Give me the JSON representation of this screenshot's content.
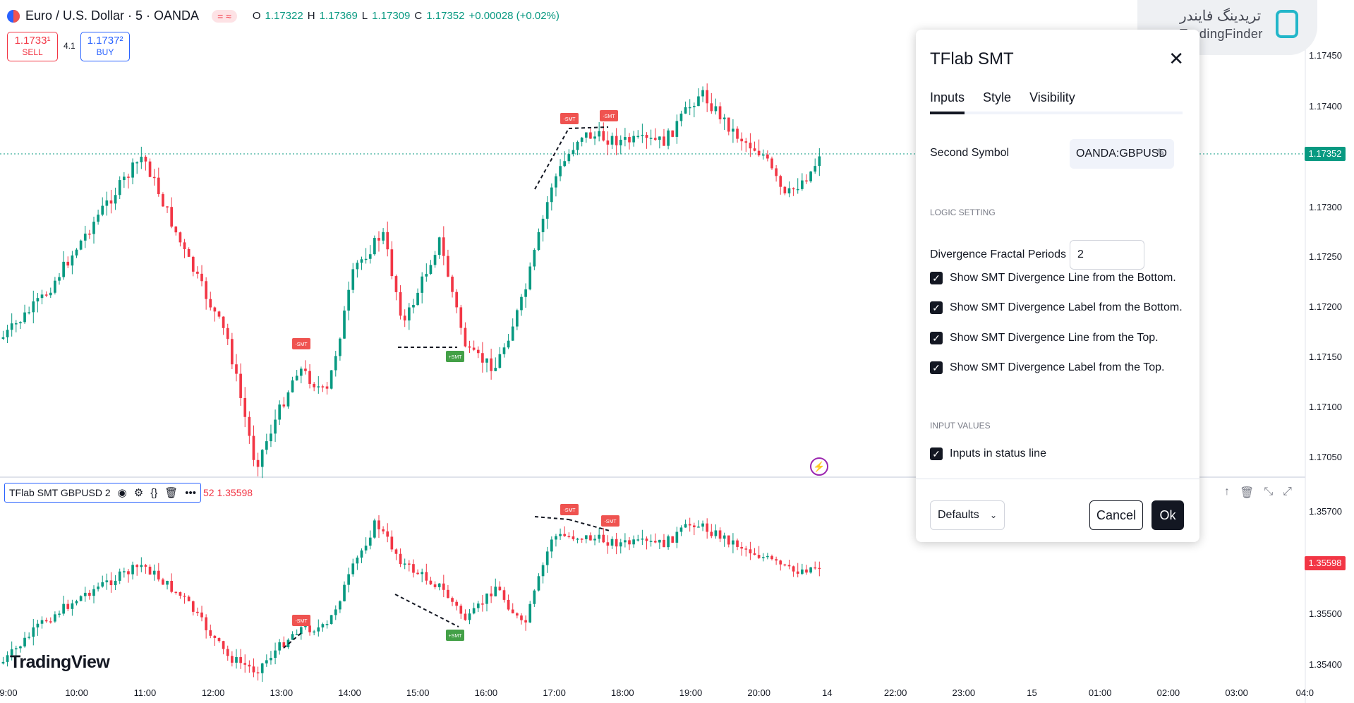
{
  "header": {
    "symbol_title": "Euro / U.S. Dollar · 5 · OANDA",
    "pill": "= ≈",
    "ohlc": [
      {
        "k": "O",
        "v": "1.17322"
      },
      {
        "k": "H",
        "v": "1.17369"
      },
      {
        "k": "L",
        "v": "1.17309"
      },
      {
        "k": "C",
        "v": "1.17352"
      },
      {
        "k": "",
        "v": "+0.00028 (+0.02%)"
      }
    ]
  },
  "trade": {
    "sell_price": "1.1733¹",
    "sell_label": "SELL",
    "spread": "4.1",
    "buy_price": "1.1737²",
    "buy_label": "BUY"
  },
  "main_price_axis": [
    "1.17450",
    "1.17400",
    "1.17352",
    "1.17300",
    "1.17250",
    "1.17200",
    "1.17150",
    "1.17100",
    "1.17050"
  ],
  "main_last_price": "1.17352",
  "indicator": {
    "legend_name": "TFlab SMT GBPUSD 2",
    "value_text": "52  1.35598",
    "price_axis": [
      "1.35700",
      "1.35598",
      "1.35500",
      "1.35400"
    ],
    "last_price": "1.35598"
  },
  "time_axis": [
    "9:00",
    "10:00",
    "11:00",
    "12:00",
    "13:00",
    "14:00",
    "15:00",
    "16:00",
    "17:00",
    "18:00",
    "19:00",
    "20:00",
    "14",
    "22:00",
    "23:00",
    "15",
    "01:00",
    "02:00",
    "03:00",
    "04:0"
  ],
  "labels": {
    "smt_minus": "-SMT",
    "smt_plus": "+SMT"
  },
  "logo": "TradingView",
  "watermark": {
    "fa": "تریدینگ فایندر",
    "en": "TradingFinder"
  },
  "colors": {
    "up": "#089981",
    "down": "#f23645",
    "smt_bear": "#ef5350",
    "smt_bull": "#43a047"
  },
  "dialog": {
    "title": "TFlab SMT",
    "tabs": [
      "Inputs",
      "Style",
      "Visibility"
    ],
    "second_symbol_label": "Second Symbol",
    "second_symbol_value": "OANDA:GBPUSD",
    "logic_heading": "LOGIC SETTING",
    "fractal_label": "Divergence Fractal Periods",
    "fractal_value": "2",
    "checks": [
      "Show SMT Divergence Line from the Bottom.",
      "Show SMT Divergence Label from the Bottom.",
      "Show SMT Divergence Line from the Top.",
      "Show SMT Divergence Label from the Top."
    ],
    "input_values_heading": "INPUT VALUES",
    "status_line_label": "Inputs in status line",
    "defaults_label": "Defaults",
    "cancel_label": "Cancel",
    "ok_label": "Ok"
  }
}
